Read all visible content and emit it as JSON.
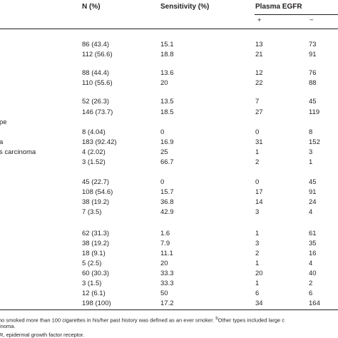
{
  "table": {
    "header": [
      "N (%)",
      "Sensitivity (%)",
      "Plasma EGFR"
    ],
    "subheader": [
      "+",
      "−"
    ],
    "rows": [
      {
        "cells": [
          "86 (43.4)",
          "15.1",
          "13",
          "73"
        ]
      },
      {
        "cells": [
          "112 (56.6)",
          "18.8",
          "21",
          "91"
        ]
      },
      {
        "cells": [
          "88 (44.4)",
          "13.6",
          "12",
          "76"
        ]
      },
      {
        "cells": [
          "110 (55.6)",
          "20",
          "22",
          "88"
        ]
      },
      {
        "cells": [
          "52 (26.3)",
          "13.5",
          "7",
          "45"
        ]
      },
      {
        "cells": [
          "146 (73.7)",
          "18.5",
          "27",
          "119"
        ]
      },
      {
        "label": "pe"
      },
      {
        "cells": [
          "8 (4.04)",
          "0",
          "0",
          "8"
        ]
      },
      {
        "label": "a",
        "cells": [
          "183 (92.42)",
          "16.9",
          "31",
          "152"
        ]
      },
      {
        "label": "s carcinoma",
        "cells": [
          "4 (2.02)",
          "25",
          "1",
          "3"
        ]
      },
      {
        "cells": [
          "3 (1.52)",
          "66.7",
          "2",
          "1"
        ]
      },
      {
        "cells": [
          "45 (22.7)",
          "0",
          "0",
          "45"
        ]
      },
      {
        "cells": [
          "108 (54.6)",
          "15.7",
          "17",
          "91"
        ]
      },
      {
        "cells": [
          "38 (19.2)",
          "36.8",
          "14",
          "24"
        ]
      },
      {
        "cells": [
          "7 (3.5)",
          "42.9",
          "3",
          "4"
        ]
      },
      {
        "cells": [
          "62 (31.3)",
          "1.6",
          "1",
          "61"
        ]
      },
      {
        "cells": [
          "38 (19.2)",
          "7.9",
          "3",
          "35"
        ]
      },
      {
        "cells": [
          "18 (9.1)",
          "11.1",
          "2",
          "16"
        ]
      },
      {
        "cells": [
          "5 (2.5)",
          "20",
          "1",
          "4"
        ]
      },
      {
        "cells": [
          "60 (30.3)",
          "33.3",
          "20",
          "40"
        ]
      },
      {
        "cells": [
          "3 (1.5)",
          "33.3",
          "1",
          "2"
        ]
      },
      {
        "cells": [
          "12 (6.1)",
          "50",
          "6",
          "6"
        ]
      },
      {
        "cells": [
          "198 (100)",
          "17.2",
          "34",
          "164"
        ]
      }
    ]
  },
  "footnotes": {
    "line1": "ho smoked more than 100 cigarettes in his/her past history was defined as an ever smoker. ",
    "line1_sup": "b",
    "line1_rest": "Other types included large c",
    "line2": "inoma.",
    "line3": "R, epidermal growth factor receptor."
  }
}
